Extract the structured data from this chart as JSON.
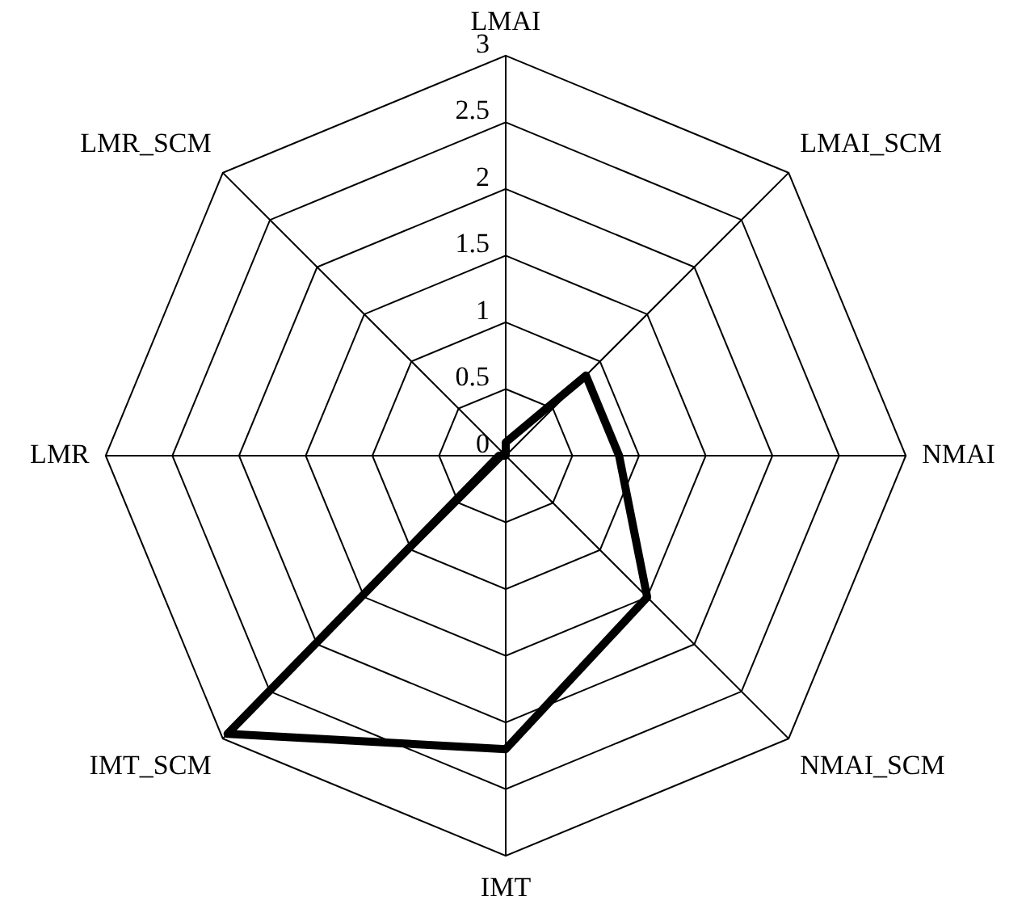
{
  "chart_data": {
    "type": "radar",
    "categories": [
      "LMAI",
      "LMAI_SCM",
      "NMAI",
      "NMAI_SCM",
      "IMT",
      "IMT_SCM",
      "LMR",
      "LMR_SCM"
    ],
    "series": [
      {
        "color": "#000000",
        "values": [
          0.1,
          0.85,
          0.85,
          1.5,
          2.2,
          2.95,
          0.05,
          0
        ]
      }
    ],
    "ylim": [
      0,
      3
    ],
    "yticks": [
      0,
      0.5,
      1,
      1.5,
      2,
      2.5,
      3
    ],
    "grid": true,
    "legend": false,
    "marker": "none"
  }
}
